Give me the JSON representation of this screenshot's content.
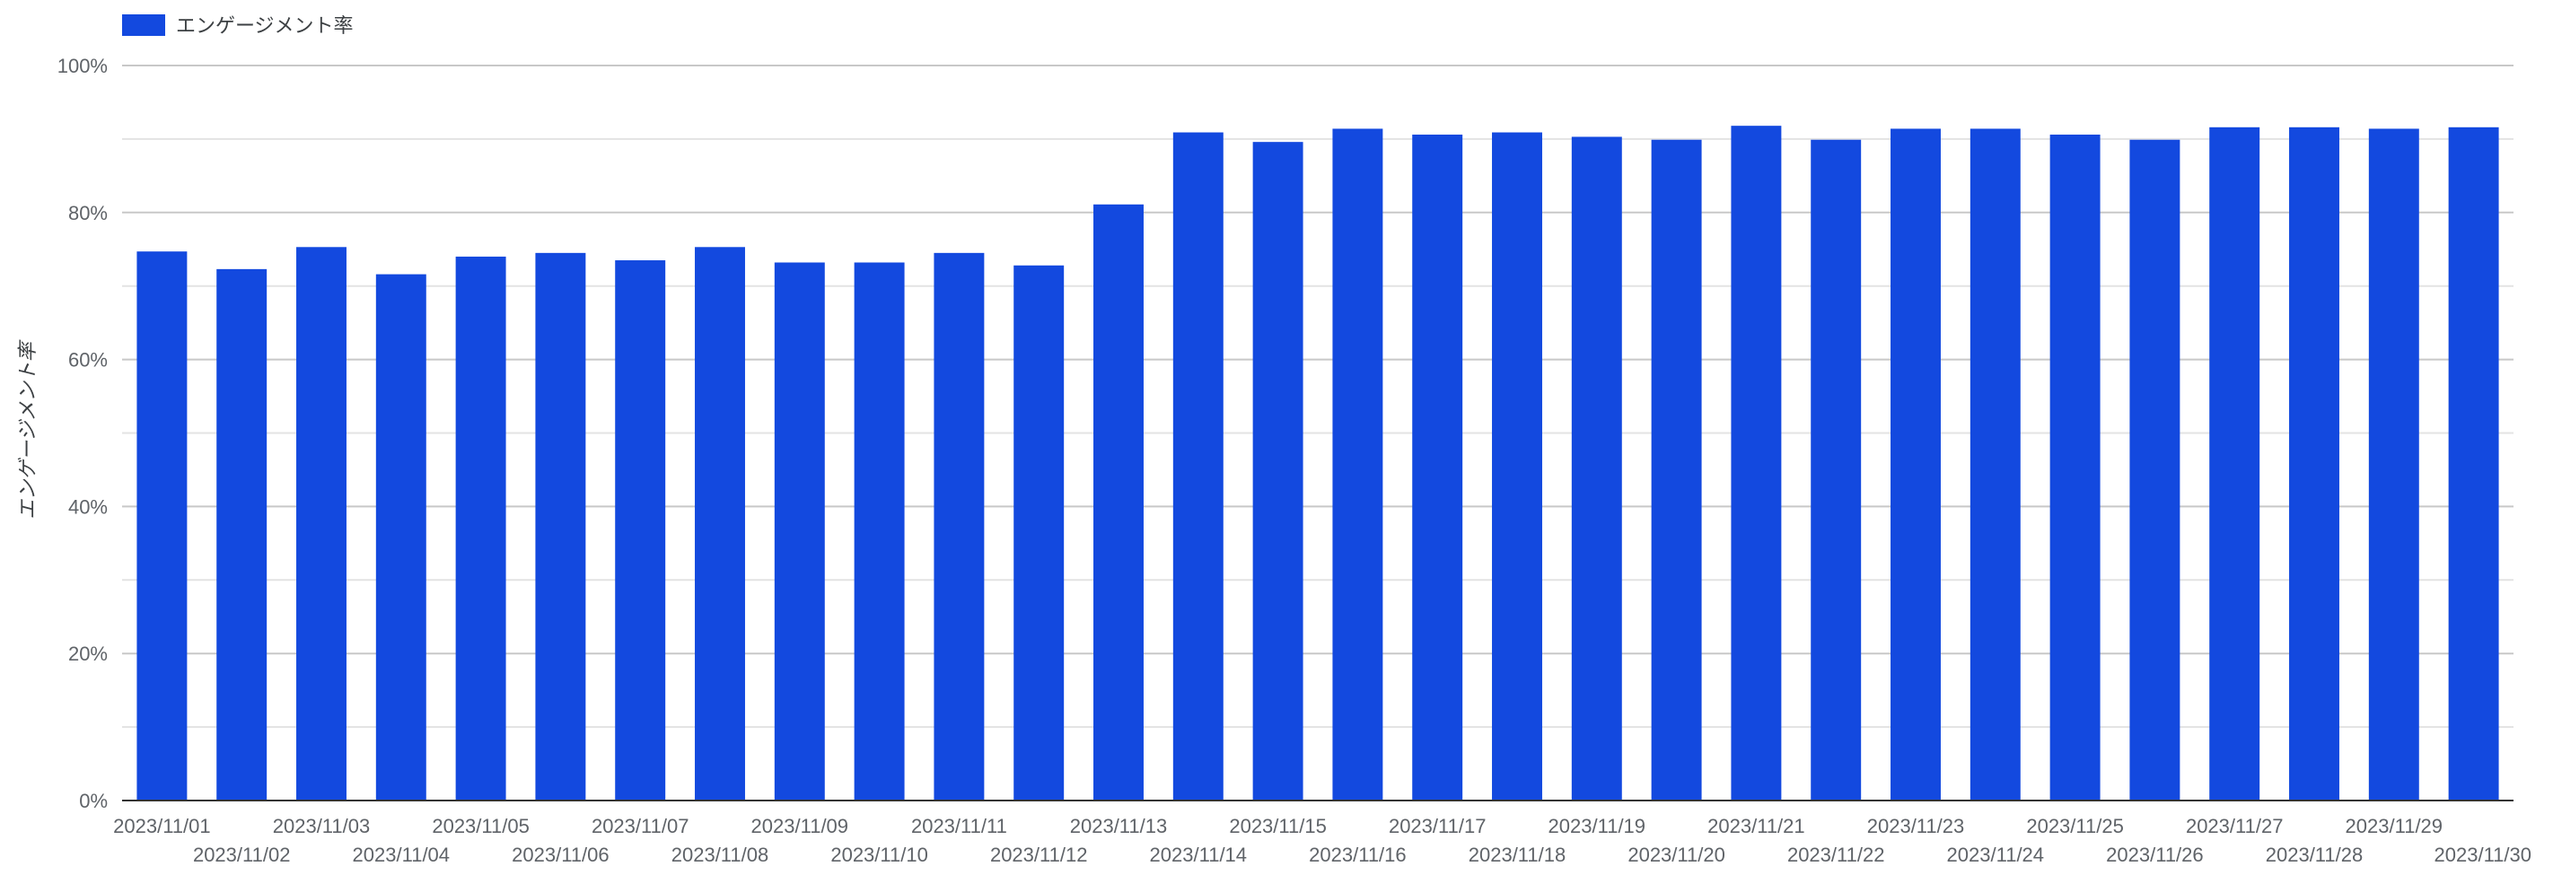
{
  "chart_data": {
    "type": "bar",
    "legend": {
      "label": "エンゲージメント率",
      "position": "top-left"
    },
    "ylabel": "エンゲージメント率",
    "xlabel": "",
    "title": "",
    "ylim": [
      0,
      100
    ],
    "y_ticks": [
      "0%",
      "20%",
      "40%",
      "60%",
      "80%",
      "100%"
    ],
    "y_tick_values": [
      0,
      20,
      40,
      60,
      80,
      100
    ],
    "minor_gridlines": true,
    "categories": [
      "2023/11/01",
      "2023/11/02",
      "2023/11/03",
      "2023/11/04",
      "2023/11/05",
      "2023/11/06",
      "2023/11/07",
      "2023/11/08",
      "2023/11/09",
      "2023/11/10",
      "2023/11/11",
      "2023/11/12",
      "2023/11/13",
      "2023/11/14",
      "2023/11/15",
      "2023/11/16",
      "2023/11/17",
      "2023/11/18",
      "2023/11/19",
      "2023/11/20",
      "2023/11/21",
      "2023/11/22",
      "2023/11/23",
      "2023/11/24",
      "2023/11/25",
      "2023/11/26",
      "2023/11/27",
      "2023/11/28",
      "2023/11/29",
      "2023/11/30"
    ],
    "series": [
      {
        "name": "エンゲージメント率",
        "unit": "%",
        "values": [
          74.7,
          72.3,
          75.3,
          71.6,
          74.0,
          74.5,
          73.5,
          75.3,
          73.2,
          73.2,
          74.5,
          72.8,
          81.1,
          90.9,
          89.6,
          91.4,
          90.6,
          90.9,
          90.3,
          89.9,
          91.8,
          89.9,
          91.4,
          91.4,
          90.6,
          89.9,
          91.6,
          91.6,
          91.4,
          91.6
        ]
      }
    ],
    "colors": {
      "bar": "#1349DF",
      "grid": "#cccccc",
      "axis": "#333333",
      "text": "#5f6368"
    }
  }
}
